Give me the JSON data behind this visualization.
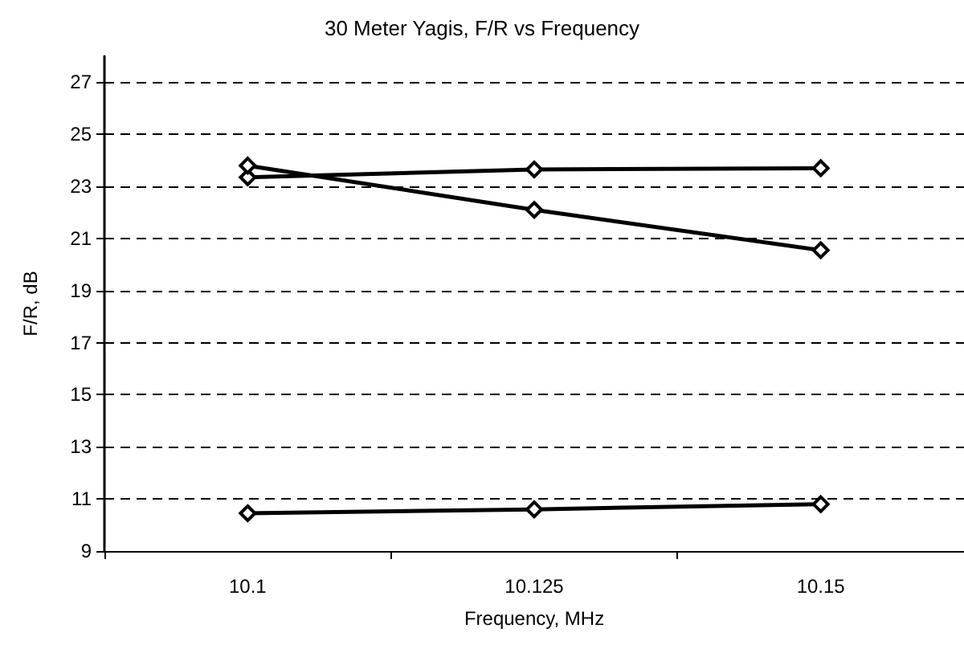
{
  "chart_data": {
    "type": "line",
    "title": "30 Meter Yagis, F/R vs Frequency",
    "xlabel": "Frequency, MHz",
    "ylabel": "F/R, dB",
    "categories": [
      "10.1",
      "10.125",
      "10.15"
    ],
    "series": [
      {
        "color": "#000000",
        "values": [
          23.35,
          23.65,
          23.7
        ]
      },
      {
        "color": "#000000",
        "values": [
          23.8,
          22.1,
          20.55
        ]
      },
      {
        "color": "#000000",
        "values": [
          10.45,
          10.6,
          10.8
        ]
      }
    ],
    "ylim": [
      9,
      28
    ],
    "yticks": [
      9,
      11,
      13,
      15,
      17,
      19,
      21,
      23,
      25,
      27
    ],
    "grid": "y",
    "marker": "diamond",
    "line_style": "solid"
  }
}
